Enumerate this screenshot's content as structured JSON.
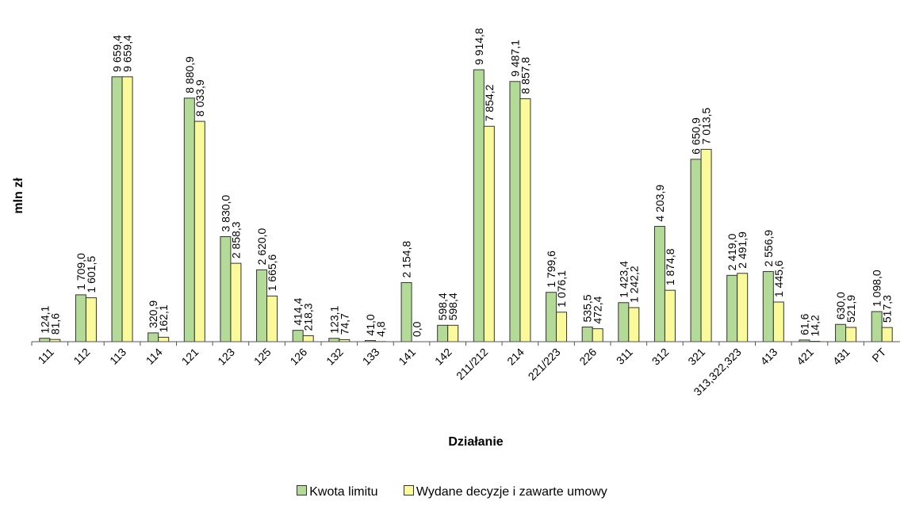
{
  "chart_data": {
    "type": "bar",
    "title": "",
    "xlabel": "Działanie",
    "ylabel": "mln zł",
    "ylim": [
      0,
      10000
    ],
    "grid": false,
    "legend_position": "bottom",
    "categories": [
      "111",
      "112",
      "113",
      "114",
      "121",
      "123",
      "125",
      "126",
      "132",
      "133",
      "141",
      "142",
      "211/212",
      "214",
      "221/223",
      "226",
      "311",
      "312",
      "321",
      "313,322,323",
      "413",
      "421",
      "431",
      "PT"
    ],
    "series": [
      {
        "name": "Kwota limitu",
        "color": "#b3db97",
        "values": [
          124.1,
          1709.0,
          9659.4,
          320.9,
          8880.9,
          3830.0,
          2620.0,
          414.4,
          123.1,
          41.0,
          2154.8,
          598.4,
          9914.8,
          9487.1,
          1799.6,
          535.5,
          1423.4,
          4203.9,
          6650.9,
          2419.0,
          2556.9,
          61.6,
          630.0,
          1098.0
        ],
        "labels": [
          "124,1",
          "1 709,0",
          "9 659,4",
          "320,9",
          "8 880,9",
          "3 830,0",
          "2 620,0",
          "414,4",
          "123,1",
          "41,0",
          "2 154,8",
          "598,4",
          "9 914,8",
          "9 487,1",
          "1 799,6",
          "535,5",
          "1 423,4",
          "4 203,9",
          "6 650,9",
          "2 419,0",
          "2 556,9",
          "61,6",
          "630,0",
          "1 098,0"
        ]
      },
      {
        "name": "Wydane decyzje i zawarte umowy",
        "color": "#fafa9a",
        "values": [
          81.6,
          1601.5,
          9659.4,
          162.1,
          8033.9,
          2858.3,
          1665.6,
          218.3,
          74.7,
          4.8,
          0.0,
          598.4,
          7854.2,
          8857.8,
          1076.1,
          472.4,
          1242.2,
          1874.8,
          7013.5,
          2491.9,
          1445.6,
          14.2,
          521.9,
          517.3
        ],
        "labels": [
          "81,6",
          "1 601,5",
          "9 659,4",
          "162,1",
          "8 033,9",
          "2 858,3",
          "1 665,6",
          "218,3",
          "74,7",
          "4,8",
          "0,0",
          "598,4",
          "7 854,2",
          "8 857,8",
          "1 076,1",
          "472,4",
          "1 242,2",
          "1 874,8",
          "7 013,5",
          "2 491,9",
          "1 445,6",
          "14,2",
          "521,9",
          "517,3"
        ]
      }
    ]
  }
}
